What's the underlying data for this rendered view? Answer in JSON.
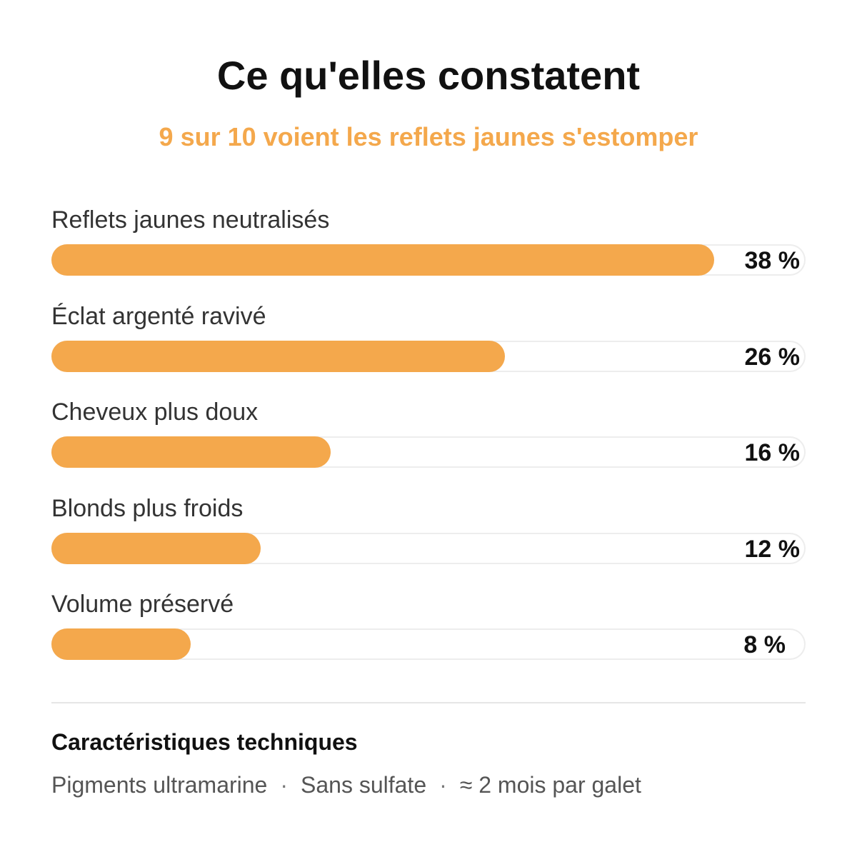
{
  "header": {
    "title": "Ce qu'elles constatent",
    "subtitle": "9 sur 10 voient les reflets jaunes s'estomper"
  },
  "colors": {
    "accent": "#F4A84C",
    "track_border": "#EDEDED"
  },
  "chart_data": {
    "type": "bar",
    "orientation": "horizontal",
    "title": "",
    "xlabel": "",
    "ylabel": "",
    "xlim": [
      0,
      38
    ],
    "categories": [
      "Reflets jaunes neutralisés",
      "Éclat argenté ravivé",
      "Cheveux plus doux",
      "Blonds plus froids",
      "Volume préservé"
    ],
    "values": [
      38,
      26,
      16,
      12,
      8
    ],
    "value_labels": [
      "38 %",
      "26 %",
      "16 %",
      "12 %",
      "8 %"
    ],
    "grid": false,
    "legend": "none"
  },
  "specs": {
    "title": "Caractéristiques techniques",
    "items": [
      "Pigments ultramarine",
      "Sans sulfate",
      "≈ 2 mois par galet"
    ],
    "separator": "·"
  }
}
